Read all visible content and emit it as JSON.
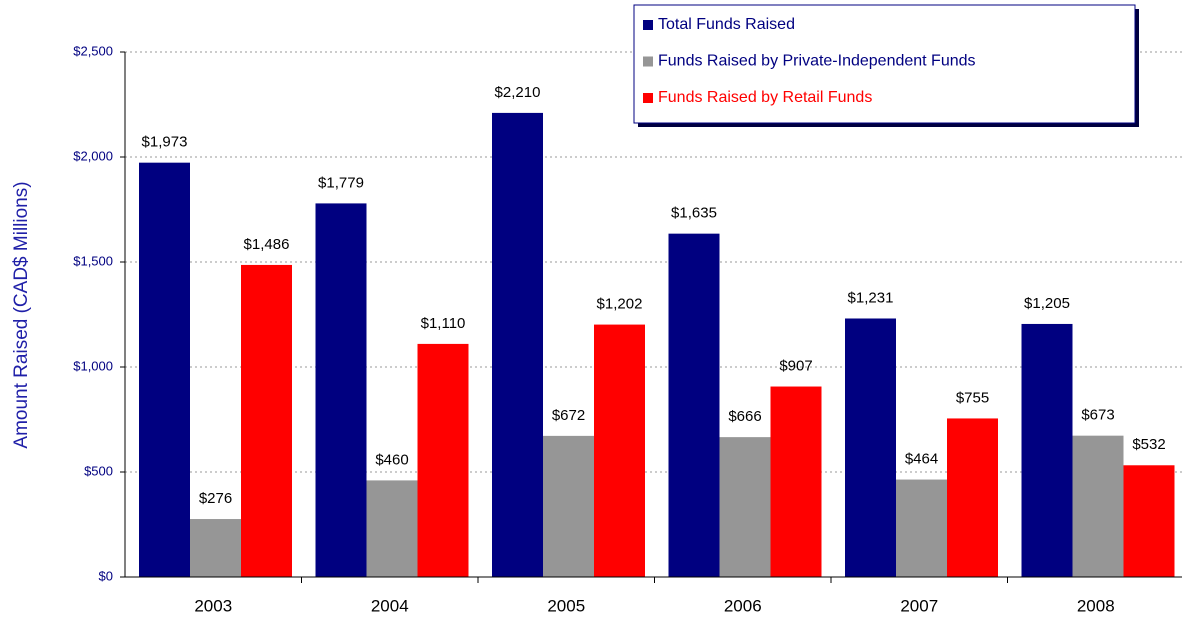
{
  "chart_data": {
    "type": "bar",
    "y_label": "Amount Raised (CAD$ Millions)",
    "categories": [
      "2003",
      "2004",
      "2005",
      "2006",
      "2007",
      "2008"
    ],
    "series": [
      {
        "name": "Total Funds Raised",
        "color": "#000080",
        "values": [
          1973,
          1779,
          2210,
          1635,
          1231,
          1205
        ],
        "value_labels": [
          "$1,973",
          "$1,779",
          "$2,210",
          "$1,635",
          "$1,231",
          "$1,205"
        ]
      },
      {
        "name": "Funds Raised by Private-Independent Funds",
        "color": "#969696",
        "values": [
          276,
          460,
          672,
          666,
          464,
          673
        ],
        "value_labels": [
          "$276",
          "$460",
          "$672",
          "$666",
          "$464",
          "$673"
        ]
      },
      {
        "name": "Funds Raised by Retail Funds",
        "color": "#ff0000",
        "values": [
          1486,
          1110,
          1202,
          907,
          755,
          532
        ],
        "value_labels": [
          "$1,486",
          "$1,110",
          "$1,202",
          "$907",
          "$755",
          "$532"
        ]
      }
    ],
    "ylim": [
      0,
      2500
    ],
    "yticks": [
      {
        "value": 0,
        "label": "$0"
      },
      {
        "value": 500,
        "label": "$500"
      },
      {
        "value": 1000,
        "label": "$1,000"
      },
      {
        "value": 1500,
        "label": "$1,500"
      },
      {
        "value": 2000,
        "label": "$2,000"
      },
      {
        "value": 2500,
        "label": "$2,500"
      }
    ],
    "grid": true,
    "legend": "top-right"
  }
}
